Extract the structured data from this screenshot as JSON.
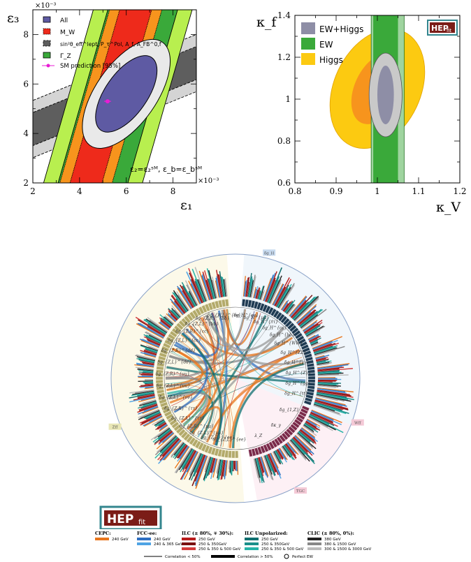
{
  "colors": {
    "all": "#5e5aa3",
    "mw": "#ee2a1b",
    "sin": "#5e5e5e",
    "gz": "#3aa93a",
    "gz_outer": "#b8ef4f",
    "sm": "#e81cd4",
    "ew_higgs": "#8e8ea6",
    "ew": "#3aa93a",
    "ew_light": "#9fd49f",
    "higgs": "#fcca11",
    "higgs_dark": "#f7941d",
    "hepfit": "#7b1c17",
    "hepfit_border": "#33868e",
    "cepc": "#e8761d",
    "fcc1": "#2f6fc1",
    "fcc2": "#4fa4e4",
    "ilc1": "#b71c1c",
    "ilc2": "#7a0f0f",
    "ilc3": "#d33a3a",
    "ilcu1": "#0f6f6f",
    "ilcu2": "#1b8f8a",
    "ilcu3": "#26b3a8",
    "clic1": "#222222",
    "clic2": "#888888",
    "clic3": "#bbbbbb"
  },
  "chart_data": [
    {
      "type": "contour",
      "xlabel": "ε₁",
      "ylabel": "ε₃",
      "x_exponent": "×10⁻³",
      "y_exponent": "×10⁻³",
      "xlim": [
        2,
        9
      ],
      "ylim": [
        2,
        9
      ],
      "xticks": [
        "2",
        "4",
        "6",
        "8"
      ],
      "yticks": [
        "2",
        "4",
        "6",
        "8"
      ],
      "legend": {
        "position": "top-left",
        "entries": [
          "All",
          "M_W",
          "sin²θ_eff^lept, P_τ^Pol, A_f, A_FB^0,f",
          "Γ_Z",
          "SM prediction [95%]"
        ]
      },
      "annotation": "ε₂=ε₂ˢᴹ, ε_b=ε_bˢᴹ",
      "sm_prediction": {
        "x": 5.2,
        "y": 5.3
      },
      "all_ellipse": {
        "center": [
          6.0,
          5.6
        ],
        "inner": [
          0.9,
          1.9
        ],
        "outer": [
          1.3,
          2.7
        ],
        "angle": 55
      }
    },
    {
      "type": "contour",
      "xlabel": "κ_V",
      "ylabel": "κ_f",
      "xlim": [
        0.8,
        1.2
      ],
      "ylim": [
        0.6,
        1.4
      ],
      "xticks": [
        "0.8",
        "0.9",
        "1",
        "1.1",
        "1.2"
      ],
      "yticks": [
        "0.6",
        "0.8",
        "1",
        "1.2",
        "1.4"
      ],
      "legend": {
        "position": "top-left",
        "entries": [
          "EW+Higgs",
          "EW",
          "Higgs"
        ]
      },
      "logo": {
        "main": "HEP",
        "sub": "fit"
      },
      "ew_band_1sigma": [
        0.99,
        1.05
      ],
      "ew_band_2sigma": [
        0.985,
        1.065
      ],
      "ew_higgs": {
        "center": [
          1.02,
          1.02
        ],
        "inner": [
          0.02,
          0.14
        ],
        "outer": [
          0.04,
          0.2
        ]
      },
      "higgs": {
        "center": [
          1.0,
          1.05
        ],
        "inner": [
          0.055,
          0.18
        ],
        "outer": [
          0.105,
          0.3
        ]
      }
    },
    {
      "type": "circular",
      "ring_labels_right": [
        "δg_H^{ee}",
        "δg_H^{μμ}",
        "δg_H^{ττ}",
        "δg_H^{cc}",
        "δg_H^{bb}",
        "δg_H^{WW}",
        "δg_H^{ZZ}",
        "δg_H^{γγ}",
        "δg_H^{Zγ}",
        "δg_H^{gg}",
        "δg_H^{tt}"
      ],
      "ring_labels_left": [
        "δg_{Z,L}^{ee}",
        "δg_{Z,R}^{ee}",
        "δg_{Z,L}^{μμ}",
        "δg_{Z,R}^{μμ}",
        "δg_{Z,L}^{ττ}",
        "δg_{Z,R}^{ττ}",
        "δg_{Z,L}^{νν}",
        "δg_{Z,L}^{uu}",
        "δg_{Z,R}^{uu}",
        "δg_{Z,L}^{dd}",
        "δg_{Z,R}^{dd}",
        "δg_{Z,L}^{cc}",
        "δg_{Z,R}^{cc}",
        "δg_{Z,L}^{bb}",
        "δg_{Z,R}^{bb}",
        "δg_{W,L}^{ℓν}"
      ],
      "ring_labels_bottom": [
        "δg_{1,Z}",
        "δκ_γ",
        "λ_Z"
      ],
      "sector_tags": [
        "δg_H",
        "Zff",
        "Wff",
        "TGC"
      ],
      "legend_groups": [
        {
          "title": "CEPC:",
          "items": [
            "240 GeV"
          ]
        },
        {
          "title": "FCC-ee:",
          "items": [
            "240 GeV",
            "240 & 365 GeV"
          ]
        },
        {
          "title": "ILC (± 80%, ∓ 30%):",
          "items": [
            "250 GeV",
            "250 & 350GeV",
            "250 & 350 & 500 GeV"
          ]
        },
        {
          "title": "ILC Unpolarized:",
          "items": [
            "250 GeV",
            "250 & 350GeV",
            "250 & 350 & 500 GeV"
          ]
        },
        {
          "title": "CLIC (± 80%, 0%):",
          "items": [
            "380 GeV",
            "380 & 1500 GeV",
            "300 & 1500 & 3000 GeV"
          ]
        }
      ],
      "correlation_legend": [
        "Correlation < 50%",
        "Correlation > 50%",
        "Perfect EW"
      ],
      "logo": {
        "main": "HEP",
        "sub": "fit"
      }
    }
  ]
}
